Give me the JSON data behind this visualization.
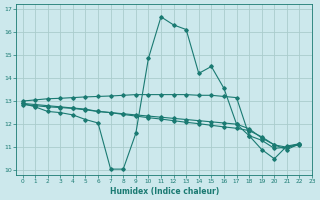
{
  "xlabel": "Humidex (Indice chaleur)",
  "background_color": "#cce8ec",
  "grid_color": "#aacccc",
  "line_color": "#1a7a72",
  "xlim": [
    -0.5,
    23
  ],
  "ylim": [
    9.8,
    17.2
  ],
  "yticks": [
    10,
    11,
    12,
    13,
    14,
    15,
    16,
    17
  ],
  "xticks": [
    0,
    1,
    2,
    3,
    4,
    5,
    6,
    7,
    8,
    9,
    10,
    11,
    12,
    13,
    14,
    15,
    16,
    17,
    18,
    19,
    20,
    21,
    22,
    23
  ],
  "s1_x": [
    0,
    1,
    2,
    3,
    4,
    5,
    6,
    7,
    8,
    9,
    10,
    11,
    12,
    13,
    14,
    15,
    16,
    17,
    18,
    19,
    20,
    21,
    22
  ],
  "s1_y": [
    12.9,
    12.75,
    12.55,
    12.5,
    12.4,
    12.2,
    12.05,
    10.05,
    10.05,
    11.6,
    14.85,
    16.65,
    16.3,
    16.1,
    14.2,
    14.5,
    13.55,
    12.0,
    11.5,
    10.9,
    10.5,
    11.05,
    11.15
  ],
  "s2_x": [
    0,
    1,
    2,
    3,
    4,
    5,
    6,
    7,
    8,
    9,
    10,
    11,
    12,
    13,
    14,
    15,
    16,
    17,
    18,
    19,
    20,
    21,
    22
  ],
  "s2_y": [
    12.9,
    12.85,
    12.8,
    12.75,
    12.7,
    12.65,
    12.55,
    12.5,
    12.45,
    12.4,
    12.35,
    12.3,
    12.25,
    12.2,
    12.15,
    12.1,
    12.05,
    12.0,
    11.8,
    11.4,
    11.1,
    11.0,
    11.15
  ],
  "s3_x": [
    0,
    1,
    2,
    3,
    4,
    5,
    6,
    7,
    8,
    9,
    10,
    11,
    12,
    13,
    14,
    15,
    16,
    17,
    18,
    19,
    20,
    21,
    22
  ],
  "s3_y": [
    12.85,
    12.8,
    12.75,
    12.72,
    12.68,
    12.62,
    12.55,
    12.5,
    12.42,
    12.35,
    12.28,
    12.22,
    12.15,
    12.08,
    12.02,
    11.95,
    11.88,
    11.82,
    11.72,
    11.45,
    11.1,
    10.9,
    11.15
  ],
  "s4_x": [
    0,
    1,
    2,
    3,
    4,
    5,
    6,
    7,
    8,
    9,
    10,
    11,
    12,
    13,
    14,
    15,
    16,
    17,
    18,
    19,
    20,
    21,
    22
  ],
  "s4_y": [
    13.0,
    13.05,
    13.1,
    13.12,
    13.15,
    13.18,
    13.2,
    13.22,
    13.25,
    13.28,
    13.28,
    13.28,
    13.28,
    13.28,
    13.25,
    13.25,
    13.2,
    13.15,
    11.5,
    11.3,
    10.95,
    11.0,
    11.1
  ]
}
